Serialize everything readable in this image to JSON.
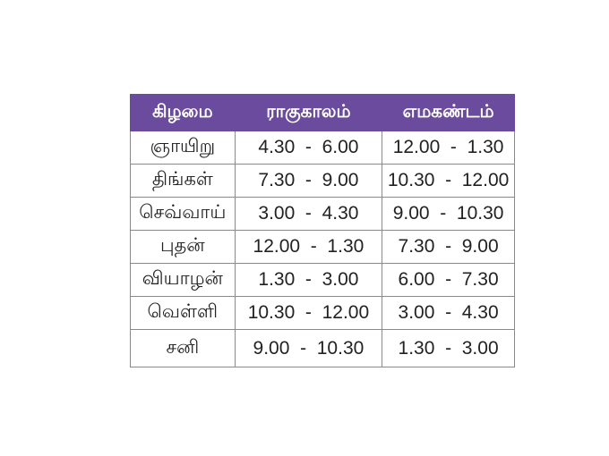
{
  "table": {
    "header_color": "#6b4b9e",
    "columns": [
      "கிழமை",
      "ராகுகாலம்",
      "எமகண்டம்"
    ],
    "rows": [
      [
        "ஞாயிறு",
        "4.30  -  6.00",
        "12.00  -  1.30"
      ],
      [
        "திங்கள்",
        "7.30  -  9.00",
        "10.30  -  12.00"
      ],
      [
        "செவ்வாய்",
        "3.00  -  4.30",
        "9.00  -  10.30"
      ],
      [
        "புதன்",
        "12.00  -  1.30",
        "7.30  -  9.00"
      ],
      [
        "வியாழன்",
        "1.30  -  3.00",
        "6.00  -  7.30"
      ],
      [
        "வெள்ளி",
        "10.30  -  12.00",
        "3.00  -  4.30"
      ],
      [
        "சனி",
        "9.00  -  10.30",
        "1.30  -  3.00"
      ]
    ]
  }
}
